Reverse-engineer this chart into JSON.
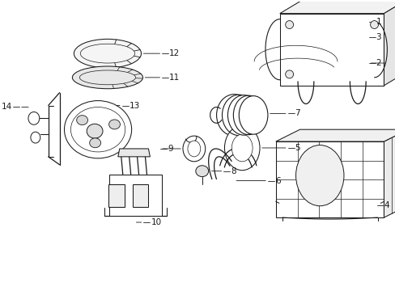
{
  "background_color": "#ffffff",
  "line_color": "#1a1a1a",
  "fig_width": 4.89,
  "fig_height": 3.6,
  "dpi": 100,
  "label_fontsize": 7.5,
  "lw": 0.75
}
